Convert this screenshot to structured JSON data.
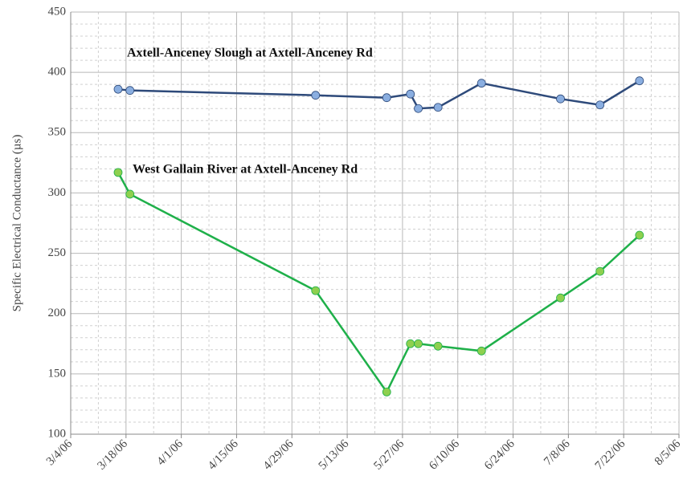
{
  "chart_data": {
    "type": "line",
    "y_label": "Specific Electrical Conductance (µs)",
    "x": [
      "3/16/06",
      "3/19/06",
      "5/5/06",
      "5/23/06",
      "5/29/06",
      "5/31/06",
      "6/5/06",
      "6/16/06",
      "7/6/06",
      "7/16/06",
      "7/26/06"
    ],
    "series": [
      {
        "name": "Axtell-Anceney Slough at Axtell-Anceney Rd",
        "color": "#2e4a7a",
        "marker_color": "#8aaee0",
        "values": [
          386,
          385,
          381,
          379,
          382,
          370,
          371,
          391,
          378,
          373,
          393
        ]
      },
      {
        "name": "West Gallain River at Axtell-Anceney Rd",
        "color": "#1fb04a",
        "marker_color": "#8ed04f",
        "values": [
          317,
          299,
          219,
          135,
          175,
          175,
          173,
          169,
          213,
          235,
          265
        ]
      }
    ],
    "xlim": [
      "3/4/06",
      "8/5/06"
    ],
    "xticks": [
      "3/4/06",
      "3/18/06",
      "4/1/06",
      "4/15/06",
      "4/29/06",
      "5/13/06",
      "5/27/06",
      "6/10/06",
      "6/24/06",
      "7/8/06",
      "7/22/06",
      "8/5/06"
    ],
    "ylim": [
      100,
      450
    ],
    "yticks": [
      100,
      150,
      200,
      250,
      300,
      350,
      400,
      450
    ],
    "grid": true
  }
}
